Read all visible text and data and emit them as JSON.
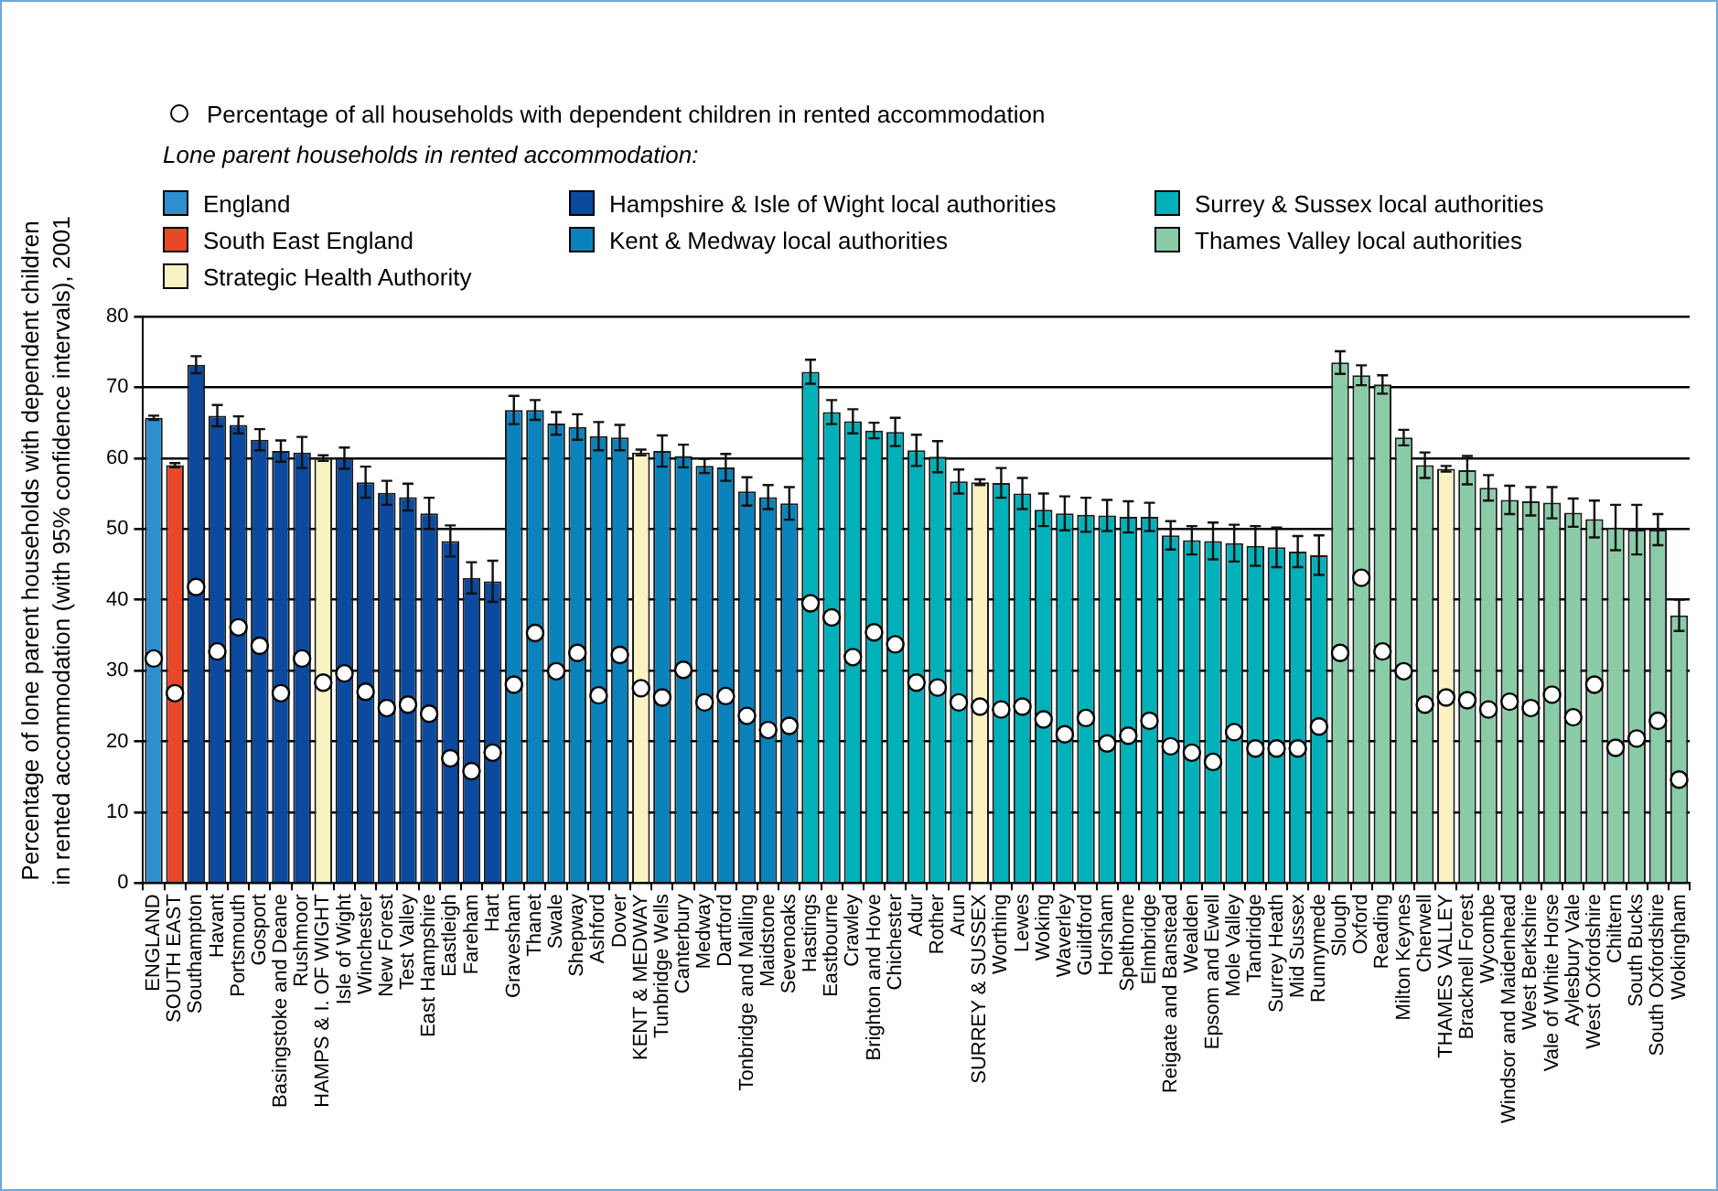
{
  "chart_data": {
    "type": "bar",
    "ylabel": "Percentage of lone parent households with dependent children in rented accommodation (with 95% confidence intervals), 2001",
    "legend_title": "Lone parent households in rented accommodation:",
    "legend": "top left",
    "grid": "y",
    "ylim": [
      0,
      80
    ],
    "yticks": [
      0,
      10,
      20,
      30,
      40,
      50,
      60,
      70,
      80
    ],
    "categories": [
      "ENGLAND",
      "SOUTH EAST",
      "Southampton",
      "Havant",
      "Portsmouth",
      "Gosport",
      "Basingstoke and Deane",
      "Rushmoor",
      "HAMPS & I. OF WIGHT",
      "Isle of Wight",
      "Winchester",
      "New Forest",
      "Test Valley",
      "East Hampshire",
      "Eastleigh",
      "Fareham",
      "Hart",
      "Gravesham",
      "Thanet",
      "Swale",
      "Shepway",
      "Ashford",
      "Dover",
      "KENT & MEDWAY",
      "Tunbridge Wells",
      "Canterbury",
      "Medway",
      "Dartford",
      "Tonbridge and Malling",
      "Maidstone",
      "Sevenoaks",
      "Hastings",
      "Eastbourne",
      "Crawley",
      "Brighton and Hove",
      "Chichester",
      "Adur",
      "Rother",
      "Arun",
      "SURREY & SUSSEX",
      "Worthing",
      "Lewes",
      "Woking",
      "Waverley",
      "Guildford",
      "Horsham",
      "Spelthorne",
      "Elmbridge",
      "Reigate and Banstead",
      "Wealden",
      "Epsom and Ewell",
      "Mole Valley",
      "Tandridge",
      "Surrey Heath",
      "Mid Sussex",
      "Runnymede",
      "Slough",
      "Oxford",
      "Reading",
      "Milton Keynes",
      "Cherwell",
      "THAMES VALLEY",
      "Bracknell Forest",
      "Wycombe",
      "Windsor and Maidenhead",
      "West Berkshire",
      "Vale of White Horse",
      "Aylesbury Vale",
      "West Oxfordshire",
      "Chiltern",
      "South Bucks",
      "South Oxfordshire",
      "Wokingham"
    ],
    "series": [
      {
        "name": "England",
        "color": "#2e8fd0",
        "values": [
          65.7,
          null,
          null,
          null,
          null,
          null,
          null,
          null,
          null,
          null,
          null,
          null,
          null,
          null,
          null,
          null,
          null,
          null,
          null,
          null,
          null,
          null,
          null,
          null,
          null,
          null,
          null,
          null,
          null,
          null,
          null,
          null,
          null,
          null,
          null,
          null,
          null,
          null,
          null,
          null,
          null,
          null,
          null,
          null,
          null,
          null,
          null,
          null,
          null,
          null,
          null,
          null,
          null,
          null,
          null,
          null,
          null,
          null,
          null,
          null,
          null,
          null,
          null,
          null,
          null,
          null,
          null,
          null,
          null,
          null,
          null,
          null,
          null
        ],
        "errors": [
          0.3,
          null,
          null,
          null,
          null,
          null,
          null,
          null,
          null,
          null,
          null,
          null,
          null,
          null,
          null,
          null,
          null,
          null,
          null,
          null,
          null,
          null,
          null,
          null,
          null,
          null,
          null,
          null,
          null,
          null,
          null,
          null,
          null,
          null,
          null,
          null,
          null,
          null,
          null,
          null,
          null,
          null,
          null,
          null,
          null,
          null,
          null,
          null,
          null,
          null,
          null,
          null,
          null,
          null,
          null,
          null,
          null,
          null,
          null,
          null,
          null,
          null,
          null,
          null,
          null,
          null,
          null,
          null,
          null,
          null,
          null,
          null,
          null
        ]
      },
      {
        "name": "South East England",
        "color": "#e8472a",
        "values": [
          null,
          59.0,
          null,
          null,
          null,
          null,
          null,
          null,
          null,
          null,
          null,
          null,
          null,
          null,
          null,
          null,
          null,
          null,
          null,
          null,
          null,
          null,
          null,
          null,
          null,
          null,
          null,
          null,
          null,
          null,
          null,
          null,
          null,
          null,
          null,
          null,
          null,
          null,
          null,
          null,
          null,
          null,
          null,
          null,
          null,
          null,
          null,
          null,
          null,
          null,
          null,
          null,
          null,
          null,
          null,
          null,
          null,
          null,
          null,
          null,
          null,
          null,
          null,
          null,
          null,
          null,
          null,
          null,
          null,
          null,
          null,
          null,
          null
        ],
        "errors": [
          null,
          0.3,
          null,
          null,
          null,
          null,
          null,
          null,
          null,
          null,
          null,
          null,
          null,
          null,
          null,
          null,
          null,
          null,
          null,
          null,
          null,
          null,
          null,
          null,
          null,
          null,
          null,
          null,
          null,
          null,
          null,
          null,
          null,
          null,
          null,
          null,
          null,
          null,
          null,
          null,
          null,
          null,
          null,
          null,
          null,
          null,
          null,
          null,
          null,
          null,
          null,
          null,
          null,
          null,
          null,
          null,
          null,
          null,
          null,
          null,
          null,
          null,
          null,
          null,
          null,
          null,
          null,
          null,
          null,
          null,
          null,
          null,
          null
        ]
      },
      {
        "name": "Strategic Health Authority",
        "color": "#fbf2c4",
        "values": [
          null,
          null,
          null,
          null,
          null,
          null,
          null,
          null,
          60.0,
          null,
          null,
          null,
          null,
          null,
          null,
          null,
          null,
          null,
          null,
          null,
          null,
          null,
          null,
          60.8,
          null,
          null,
          null,
          null,
          null,
          null,
          null,
          null,
          null,
          null,
          null,
          null,
          null,
          null,
          null,
          56.6,
          null,
          null,
          null,
          null,
          null,
          null,
          null,
          null,
          null,
          null,
          null,
          null,
          null,
          null,
          null,
          null,
          null,
          null,
          null,
          null,
          null,
          58.5,
          null,
          null,
          null,
          null,
          null,
          null,
          null,
          null,
          null,
          null,
          null
        ],
        "errors": [
          null,
          null,
          null,
          null,
          null,
          null,
          null,
          null,
          0.4,
          null,
          null,
          null,
          null,
          null,
          null,
          null,
          null,
          null,
          null,
          null,
          null,
          null,
          null,
          0.4,
          null,
          null,
          null,
          null,
          null,
          null,
          null,
          null,
          null,
          null,
          null,
          null,
          null,
          null,
          null,
          0.4,
          null,
          null,
          null,
          null,
          null,
          null,
          null,
          null,
          null,
          null,
          null,
          null,
          null,
          null,
          null,
          null,
          null,
          null,
          null,
          null,
          null,
          0.4,
          null,
          null,
          null,
          null,
          null,
          null,
          null,
          null,
          null,
          null,
          null
        ]
      },
      {
        "name": "Hampshire & Isle of Wight local authorities",
        "color": "#0b4a9e",
        "values": [
          null,
          null,
          73.2,
          66.0,
          64.7,
          62.6,
          61.0,
          60.8,
          null,
          60.0,
          56.6,
          55.1,
          54.5,
          52.2,
          48.3,
          43.1,
          42.6,
          null,
          null,
          null,
          null,
          null,
          null,
          null,
          null,
          null,
          null,
          null,
          null,
          null,
          null,
          null,
          null,
          null,
          null,
          null,
          null,
          null,
          null,
          null,
          null,
          null,
          null,
          null,
          null,
          null,
          null,
          null,
          null,
          null,
          null,
          null,
          null,
          null,
          null,
          null,
          null,
          null,
          null,
          null,
          null,
          null,
          null,
          null,
          null,
          null,
          null,
          null,
          null,
          null,
          null,
          null,
          null
        ],
        "errors": [
          null,
          null,
          1.2,
          1.5,
          1.2,
          1.5,
          1.5,
          2.2,
          null,
          1.5,
          2.2,
          1.7,
          1.9,
          2.2,
          2.2,
          2.2,
          2.9,
          null,
          null,
          null,
          null,
          null,
          null,
          null,
          null,
          null,
          null,
          null,
          null,
          null,
          null,
          null,
          null,
          null,
          null,
          null,
          null,
          null,
          null,
          null,
          null,
          null,
          null,
          null,
          null,
          null,
          null,
          null,
          null,
          null,
          null,
          null,
          null,
          null,
          null,
          null,
          null,
          null,
          null,
          null,
          null,
          null,
          null,
          null,
          null,
          null,
          null,
          null,
          null,
          null,
          null,
          null,
          null
        ]
      },
      {
        "name": "Kent & Medway local authorities",
        "color": "#0a82bb",
        "values": [
          null,
          null,
          null,
          null,
          null,
          null,
          null,
          null,
          null,
          null,
          null,
          null,
          null,
          null,
          null,
          null,
          null,
          66.8,
          66.8,
          64.9,
          64.4,
          63.1,
          62.9,
          null,
          61.0,
          60.3,
          58.9,
          58.7,
          55.3,
          54.5,
          53.6,
          null,
          null,
          null,
          null,
          null,
          null,
          null,
          null,
          null,
          null,
          null,
          null,
          null,
          null,
          null,
          null,
          null,
          null,
          null,
          null,
          null,
          null,
          null,
          null,
          null,
          null,
          null,
          null,
          null,
          null,
          null,
          null,
          null,
          null,
          null,
          null,
          null,
          null,
          null,
          null,
          null,
          null
        ],
        "errors": [
          null,
          null,
          null,
          null,
          null,
          null,
          null,
          null,
          null,
          null,
          null,
          null,
          null,
          null,
          null,
          null,
          null,
          2.0,
          1.4,
          1.6,
          1.8,
          2.0,
          1.8,
          null,
          2.2,
          1.6,
          1.0,
          1.9,
          2.0,
          1.7,
          2.3,
          null,
          null,
          null,
          null,
          null,
          null,
          null,
          null,
          null,
          null,
          null,
          null,
          null,
          null,
          null,
          null,
          null,
          null,
          null,
          null,
          null,
          null,
          null,
          null,
          null,
          null,
          null,
          null,
          null,
          null,
          null,
          null,
          null,
          null,
          null,
          null,
          null,
          null,
          null,
          null,
          null,
          null
        ]
      },
      {
        "name": "Surrey & Sussex local authorities",
        "color": "#00b1b9",
        "values": [
          null,
          null,
          null,
          null,
          null,
          null,
          null,
          null,
          null,
          null,
          null,
          null,
          null,
          null,
          null,
          null,
          null,
          null,
          null,
          null,
          null,
          null,
          null,
          null,
          null,
          null,
          null,
          null,
          null,
          null,
          null,
          72.2,
          66.5,
          65.2,
          63.9,
          63.7,
          61.1,
          60.2,
          56.7,
          null,
          56.5,
          55.0,
          52.7,
          52.2,
          52.0,
          51.9,
          51.7,
          51.7,
          49.1,
          48.4,
          48.3,
          48.0,
          47.6,
          47.4,
          46.8,
          46.3,
          null,
          null,
          null,
          null,
          null,
          null,
          null,
          null,
          null,
          null,
          null,
          null,
          null,
          null,
          null,
          null,
          null
        ],
        "errors": [
          null,
          null,
          null,
          null,
          null,
          null,
          null,
          null,
          null,
          null,
          null,
          null,
          null,
          null,
          null,
          null,
          null,
          null,
          null,
          null,
          null,
          null,
          null,
          null,
          null,
          null,
          null,
          null,
          null,
          null,
          null,
          1.7,
          1.7,
          1.7,
          1.1,
          2.0,
          2.2,
          2.2,
          1.7,
          null,
          2.1,
          2.2,
          2.3,
          2.4,
          2.4,
          2.2,
          2.2,
          2.0,
          2.0,
          2.0,
          2.6,
          2.6,
          2.8,
          2.8,
          2.2,
          2.8,
          null,
          null,
          null,
          null,
          null,
          null,
          null,
          null,
          null,
          null,
          null,
          null,
          null,
          null,
          null,
          null,
          null
        ]
      },
      {
        "name": "Thames Valley local authorities",
        "color": "#8acca8",
        "values": [
          null,
          null,
          null,
          null,
          null,
          null,
          null,
          null,
          null,
          null,
          null,
          null,
          null,
          null,
          null,
          null,
          null,
          null,
          null,
          null,
          null,
          null,
          null,
          null,
          null,
          null,
          null,
          null,
          null,
          null,
          null,
          null,
          null,
          null,
          null,
          null,
          null,
          null,
          null,
          null,
          null,
          null,
          null,
          null,
          null,
          null,
          null,
          null,
          null,
          null,
          null,
          null,
          null,
          null,
          null,
          null,
          73.5,
          71.7,
          70.4,
          62.9,
          59.0,
          null,
          58.3,
          55.8,
          54.1,
          53.9,
          53.7,
          52.3,
          51.4,
          50.2,
          49.9,
          49.9,
          37.8
        ],
        "errors": [
          null,
          null,
          null,
          null,
          null,
          null,
          null,
          null,
          null,
          null,
          null,
          null,
          null,
          null,
          null,
          null,
          null,
          null,
          null,
          null,
          null,
          null,
          null,
          null,
          null,
          null,
          null,
          null,
          null,
          null,
          null,
          null,
          null,
          null,
          null,
          null,
          null,
          null,
          null,
          null,
          null,
          null,
          null,
          null,
          null,
          null,
          null,
          null,
          null,
          null,
          null,
          null,
          null,
          null,
          null,
          null,
          1.6,
          1.4,
          1.3,
          1.1,
          1.8,
          null,
          2.0,
          1.8,
          2.0,
          2.0,
          2.2,
          2.0,
          2.6,
          3.2,
          3.5,
          2.2,
          2.2
        ]
      },
      {
        "name": "Percentage of all households with dependent children in rented accommodation",
        "type": "scatter",
        "marker": "circle",
        "color": "#ffffff",
        "values": [
          31.7,
          26.8,
          41.8,
          32.7,
          36.1,
          33.5,
          26.8,
          31.7,
          28.3,
          29.6,
          27.0,
          24.7,
          25.2,
          23.9,
          17.6,
          15.8,
          18.4,
          28.0,
          35.3,
          29.9,
          32.5,
          26.5,
          32.2,
          27.5,
          26.2,
          30.1,
          25.5,
          26.4,
          23.6,
          21.6,
          22.2,
          39.5,
          37.5,
          31.9,
          35.4,
          33.7,
          28.3,
          27.6,
          25.5,
          24.9,
          24.5,
          24.9,
          23.1,
          21.0,
          23.3,
          19.7,
          20.8,
          22.9,
          19.3,
          18.4,
          17.1,
          21.3,
          19.0,
          19.0,
          19.0,
          22.1,
          32.5,
          43.1,
          32.7,
          29.9,
          25.2,
          26.2,
          25.8,
          24.5,
          25.6,
          24.7,
          26.6,
          23.4,
          28.0,
          19.1,
          20.4,
          22.9,
          14.6
        ]
      }
    ]
  }
}
